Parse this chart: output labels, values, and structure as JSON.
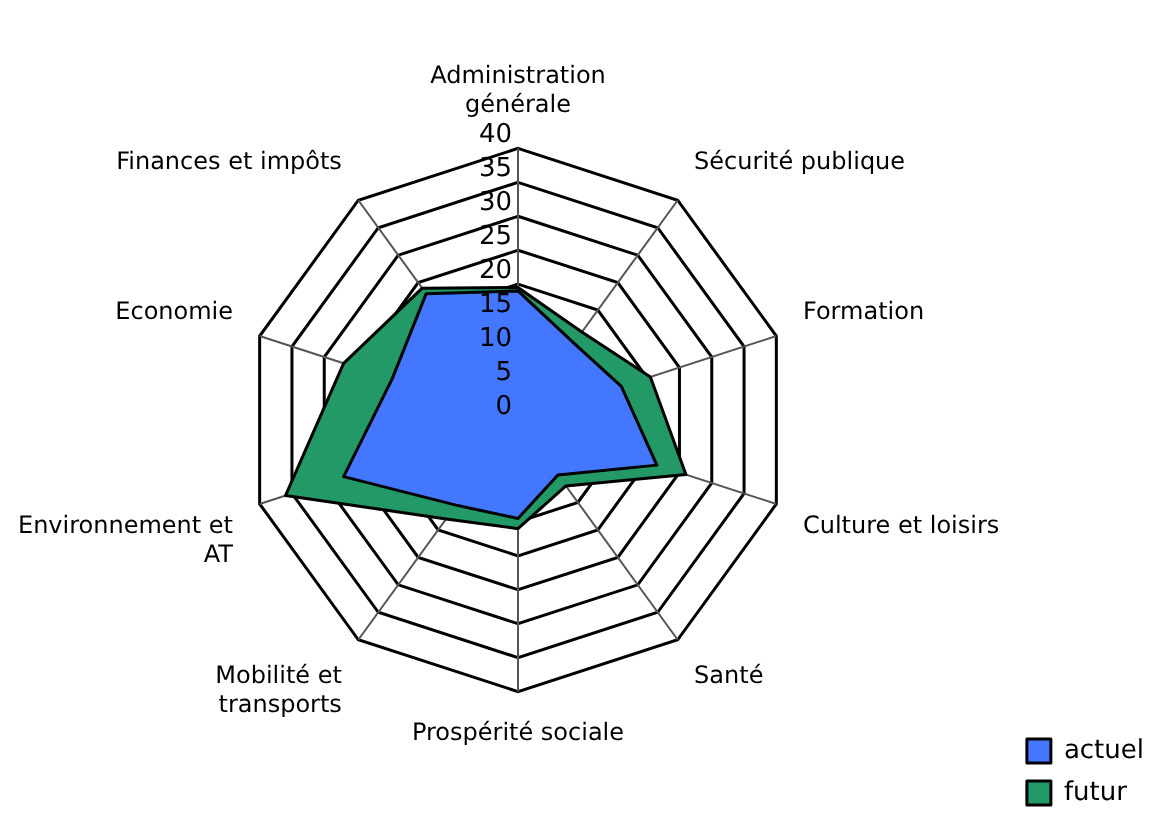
{
  "chart_data": {
    "type": "radar",
    "categories": [
      "Administration générale",
      "Sécurité publique",
      "Formation",
      "Culture et loisirs",
      "Santé",
      "Prospérité sociale",
      "Mobilité et transports",
      "Environnement et AT",
      "Economie",
      "Finances et impôts"
    ],
    "series": [
      {
        "name": "actuel",
        "color": "#4477ff",
        "values": [
          19,
          14,
          16,
          21.5,
          10,
          14.5,
          15.5,
          27,
          19.5,
          23
        ]
      },
      {
        "name": "futur",
        "color": "#229966",
        "values": [
          19.5,
          16,
          20.5,
          26,
          12,
          16,
          18,
          36,
          27,
          24
        ]
      }
    ],
    "ylim": [
      0,
      40
    ],
    "yticks": [
      0,
      5,
      10,
      15,
      20,
      25,
      30,
      35,
      40
    ],
    "grid": true,
    "legend": "bottom right"
  }
}
